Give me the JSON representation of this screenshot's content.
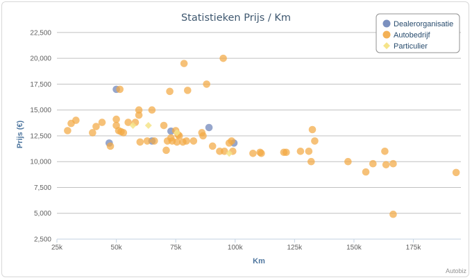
{
  "chart_data": {
    "type": "scatter",
    "title": "Statistieken Prijs / Km",
    "xlabel": "Km",
    "ylabel": "Prijs (€)",
    "xlim": [
      25000,
      195000
    ],
    "ylim": [
      2500,
      23500
    ],
    "x_ticks": [
      25000,
      50000,
      75000,
      100000,
      125000,
      150000,
      175000
    ],
    "x_tick_labels": [
      "25k",
      "50k",
      "75k",
      "100k",
      "125k",
      "150k",
      "175k"
    ],
    "y_ticks": [
      2500,
      5000,
      7500,
      10000,
      12500,
      15000,
      17500,
      20000,
      22500
    ],
    "y_tick_labels": [
      "2,500",
      "5,000",
      "7,500",
      "10,000",
      "12,500",
      "15,000",
      "17,500",
      "20,000",
      "22,500"
    ],
    "grid": "horizontal",
    "legend_position": "top-right",
    "credit": "Autobiz",
    "series": [
      {
        "name": "Dealerorganisatie",
        "color": "#6d84b8",
        "marker": "circle",
        "points": [
          [
            50000,
            17000
          ],
          [
            47000,
            11800
          ],
          [
            73000,
            12950
          ],
          [
            89000,
            13300
          ],
          [
            99500,
            11800
          ],
          [
            65000,
            12000
          ]
        ]
      },
      {
        "name": "Autobedrijf",
        "color": "#f2a944",
        "marker": "circle",
        "points": [
          [
            29500,
            13000
          ],
          [
            31000,
            13700
          ],
          [
            33000,
            14000
          ],
          [
            40000,
            12800
          ],
          [
            41500,
            13400
          ],
          [
            44000,
            13800
          ],
          [
            47500,
            11500
          ],
          [
            50000,
            14100
          ],
          [
            50000,
            13500
          ],
          [
            51000,
            13000
          ],
          [
            51500,
            17000
          ],
          [
            52000,
            12900
          ],
          [
            53000,
            12800
          ],
          [
            55000,
            13800
          ],
          [
            58000,
            13800
          ],
          [
            59500,
            14500
          ],
          [
            59500,
            15000
          ],
          [
            60000,
            11900
          ],
          [
            63000,
            12000
          ],
          [
            65000,
            15000
          ],
          [
            66000,
            12000
          ],
          [
            70000,
            13500
          ],
          [
            71000,
            11100
          ],
          [
            71500,
            12000
          ],
          [
            72500,
            16800
          ],
          [
            73000,
            12300
          ],
          [
            73500,
            12000
          ],
          [
            75000,
            13000
          ],
          [
            75500,
            11900
          ],
          [
            76000,
            12600
          ],
          [
            76500,
            12500
          ],
          [
            78000,
            11900
          ],
          [
            78500,
            19500
          ],
          [
            79500,
            12000
          ],
          [
            80000,
            16900
          ],
          [
            82500,
            12000
          ],
          [
            86000,
            12800
          ],
          [
            86500,
            12500
          ],
          [
            88000,
            17500
          ],
          [
            90500,
            11500
          ],
          [
            93500,
            11000
          ],
          [
            95000,
            20000
          ],
          [
            95500,
            11000
          ],
          [
            97500,
            11800
          ],
          [
            98500,
            12000
          ],
          [
            99000,
            11000
          ],
          [
            107500,
            10800
          ],
          [
            110500,
            10900
          ],
          [
            111000,
            10800
          ],
          [
            120500,
            10900
          ],
          [
            121500,
            10900
          ],
          [
            127500,
            11000
          ],
          [
            131000,
            11000
          ],
          [
            132000,
            10000
          ],
          [
            132500,
            13100
          ],
          [
            133500,
            12000
          ],
          [
            147500,
            10000
          ],
          [
            155000,
            9000
          ],
          [
            158000,
            9800
          ],
          [
            163000,
            11000
          ],
          [
            163500,
            9700
          ],
          [
            166500,
            9800
          ],
          [
            166500,
            4900
          ],
          [
            193000,
            8950
          ]
        ]
      },
      {
        "name": "Particulier",
        "color": "#f5e48a",
        "marker": "diamond",
        "points": [
          [
            57000,
            13500
          ],
          [
            63500,
            13500
          ],
          [
            75500,
            12800
          ],
          [
            97500,
            10800
          ]
        ]
      }
    ]
  }
}
